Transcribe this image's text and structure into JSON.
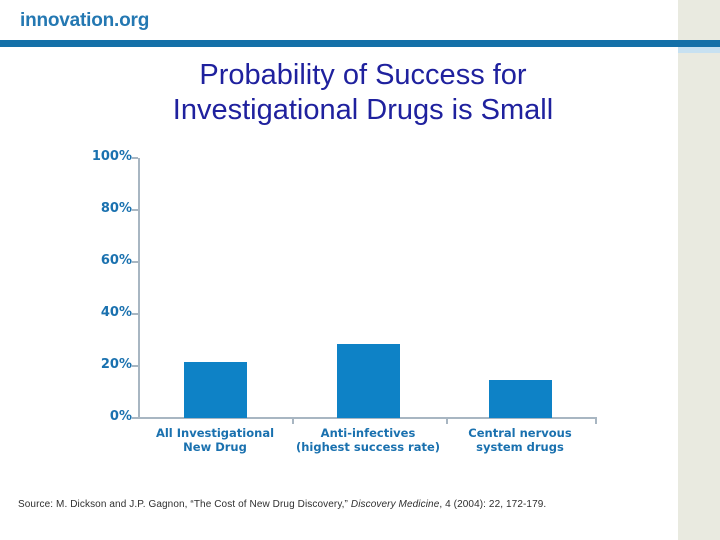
{
  "logo": {
    "text": "innovation.org"
  },
  "title": {
    "line1": "Probability of Success for",
    "line2": "Investigational Drugs is Small"
  },
  "chart_data": {
    "type": "bar",
    "title": "Probability of Success for Investigational Drugs is Small",
    "categories": [
      [
        "All Investigational",
        "New Drug"
      ],
      [
        "Anti-infectives",
        "(highest success rate)"
      ],
      [
        "Central nervous",
        "system drugs"
      ]
    ],
    "values": [
      21.5,
      28.5,
      14.5
    ],
    "xlabel": "",
    "ylabel": "",
    "ylim": [
      0,
      100
    ],
    "yticks": [
      0,
      20,
      40,
      60,
      80,
      100
    ],
    "ytick_labels": [
      "0%",
      "20%",
      "40%",
      "60%",
      "80%",
      "100%"
    ],
    "bar_color": "#0e82c6",
    "grid": false,
    "legend": "none"
  },
  "source": {
    "prefix": "Source: M. Dickson and J.P. Gagnon, “The Cost of New Drug Discovery,” ",
    "journal": "Discovery Medicine",
    "suffix": ", 4 (2004): 22, 172-179."
  },
  "colors": {
    "header_bar": "#1470a8",
    "logo_text": "#2478b2",
    "title_text": "#1f219e",
    "axis_labels": "#1a71af",
    "bar_fill": "#0e82c6",
    "axis_line": "#a8b6c2",
    "right_strip": "#e9eae0",
    "strip_accent": "#c7e1f1"
  }
}
